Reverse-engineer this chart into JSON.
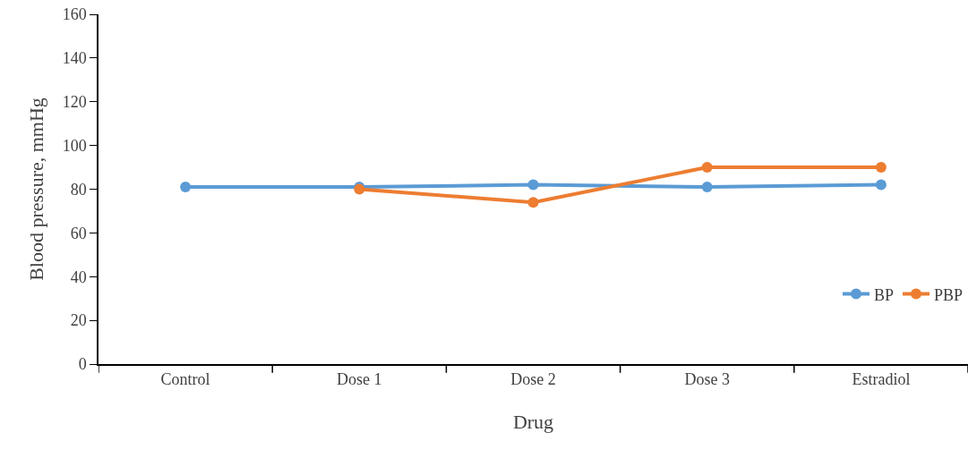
{
  "chart_data": {
    "type": "line",
    "xlabel": "Drug",
    "ylabel": "Blood pressure, mmHg",
    "categories": [
      "Control",
      "Dose 1",
      "Dose 2",
      "Dose 3",
      "Estradiol"
    ],
    "series": [
      {
        "name": "BP",
        "color": "#5b9bd5",
        "values": [
          81,
          81,
          82,
          81,
          82
        ]
      },
      {
        "name": "PBP",
        "color": "#ed7d31",
        "values": [
          null,
          80,
          74,
          90,
          90
        ]
      }
    ],
    "ylim": [
      0,
      160
    ],
    "yticks": [
      0,
      20,
      40,
      60,
      80,
      100,
      120,
      140,
      160
    ],
    "grid": false,
    "legend": "right",
    "marker": "circle",
    "line_style": "solid"
  }
}
